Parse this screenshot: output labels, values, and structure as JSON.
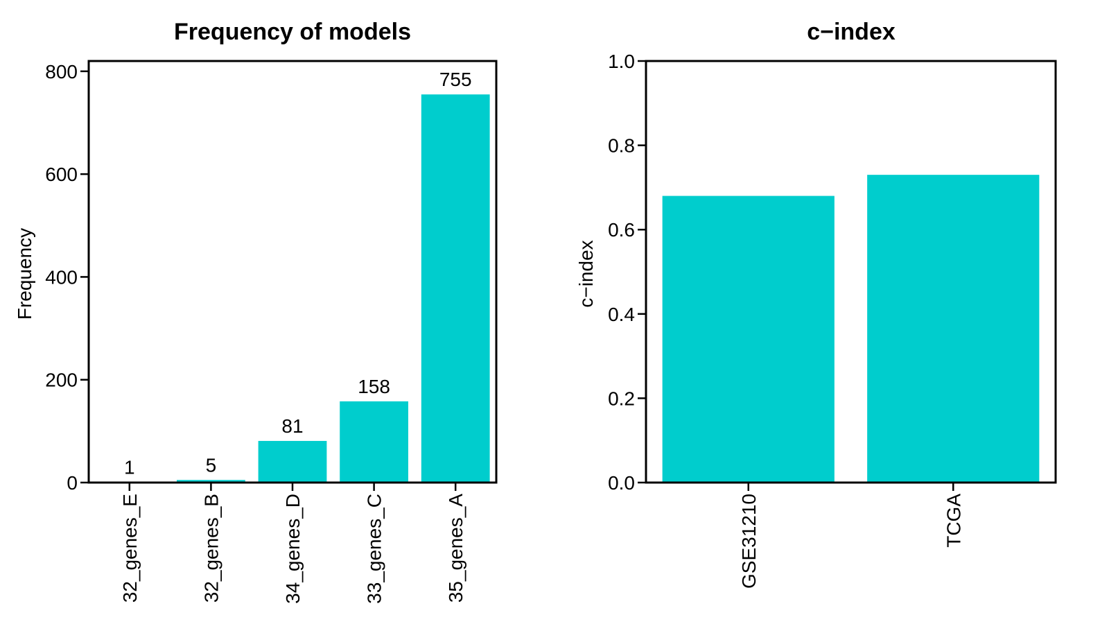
{
  "chart_data": [
    {
      "type": "bar",
      "title": "Frequency of models",
      "xlabel": "",
      "ylabel": "Frequency",
      "categories": [
        "32_genes_E",
        "32_genes_B",
        "34_genes_D",
        "33_genes_C",
        "35_genes_A"
      ],
      "values": [
        1,
        5,
        81,
        158,
        755
      ],
      "data_labels": [
        "1",
        "5",
        "81",
        "158",
        "755"
      ],
      "ylim": [
        0,
        820
      ],
      "yticks": [
        0,
        200,
        400,
        600,
        800
      ],
      "ytick_labels": [
        "0",
        "200",
        "400",
        "600",
        "800"
      ],
      "bar_color": "#00CDCD",
      "grid": false
    },
    {
      "type": "bar",
      "title": "c−index",
      "xlabel": "",
      "ylabel": "c−index",
      "categories": [
        "GSE31210",
        "TCGA"
      ],
      "values": [
        0.68,
        0.73
      ],
      "ylim": [
        0,
        1.0
      ],
      "yticks": [
        0,
        0.2,
        0.4,
        0.6,
        0.8,
        1.0
      ],
      "ytick_labels": [
        "0.0",
        "0.2",
        "0.4",
        "0.6",
        "0.8",
        "1.0"
      ],
      "bar_color": "#00CDCD",
      "grid": false
    }
  ]
}
